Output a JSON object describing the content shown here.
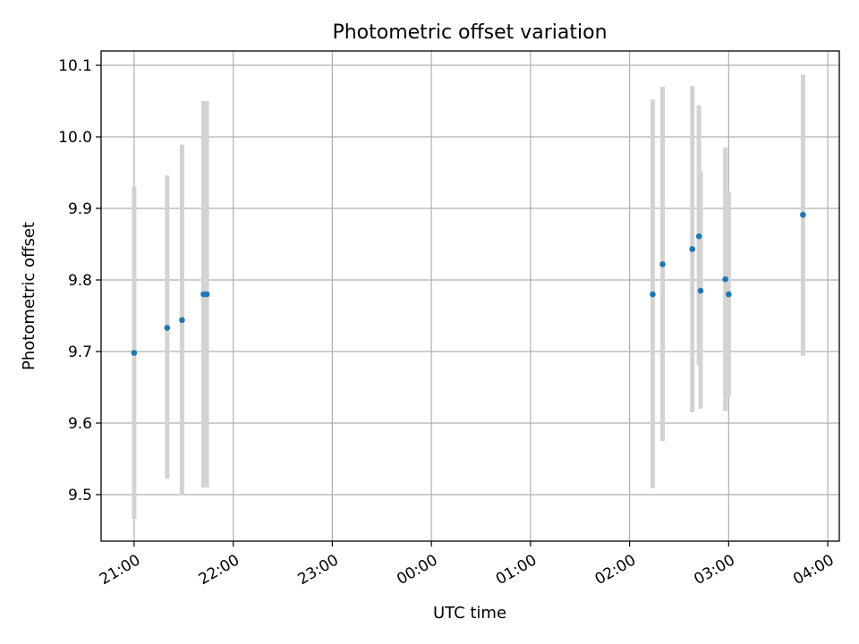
{
  "chart_data": {
    "type": "scatter",
    "title": "Photometric offset variation",
    "xlabel": "UTC time",
    "ylabel": "Photometric offset",
    "grid": true,
    "legend": "none",
    "x_ticks": [
      "21:00",
      "22:00",
      "23:00",
      "00:00",
      "01:00",
      "02:00",
      "03:00",
      "04:00"
    ],
    "y_ticks": [
      "9.5",
      "9.6",
      "9.7",
      "9.8",
      "9.9",
      "10.0",
      "10.1"
    ],
    "xlim": [
      "20:40",
      "04:07"
    ],
    "ylim": [
      9.435,
      10.12
    ],
    "colors": {
      "marker": "#1f77b4",
      "errorbar": "#d3d3d3",
      "grid": "#b0b0b0"
    },
    "points": [
      {
        "x": "21:00",
        "y": 9.698,
        "ylow": 9.466,
        "yhigh": 9.93
      },
      {
        "x": "21:20",
        "y": 9.733,
        "ylow": 9.522,
        "yhigh": 9.946
      },
      {
        "x": "21:29",
        "y": 9.744,
        "ylow": 9.499,
        "yhigh": 9.989
      },
      {
        "x": "21:42",
        "y": 9.78,
        "ylow": 9.51,
        "yhigh": 10.05
      },
      {
        "x": "21:44",
        "y": 9.78,
        "ylow": 9.51,
        "yhigh": 10.05
      },
      {
        "x": "02:14",
        "y": 9.78,
        "ylow": 9.509,
        "yhigh": 10.052
      },
      {
        "x": "02:20",
        "y": 9.822,
        "ylow": 9.575,
        "yhigh": 10.07
      },
      {
        "x": "02:38",
        "y": 9.843,
        "ylow": 9.615,
        "yhigh": 10.071
      },
      {
        "x": "02:42",
        "y": 9.861,
        "ylow": 9.681,
        "yhigh": 10.044
      },
      {
        "x": "02:43",
        "y": 9.785,
        "ylow": 9.62,
        "yhigh": 9.952
      },
      {
        "x": "02:58",
        "y": 9.801,
        "ylow": 9.617,
        "yhigh": 9.985
      },
      {
        "x": "03:00",
        "y": 9.78,
        "ylow": 9.637,
        "yhigh": 9.923
      },
      {
        "x": "03:45",
        "y": 9.891,
        "ylow": 9.694,
        "yhigh": 10.087
      }
    ]
  }
}
